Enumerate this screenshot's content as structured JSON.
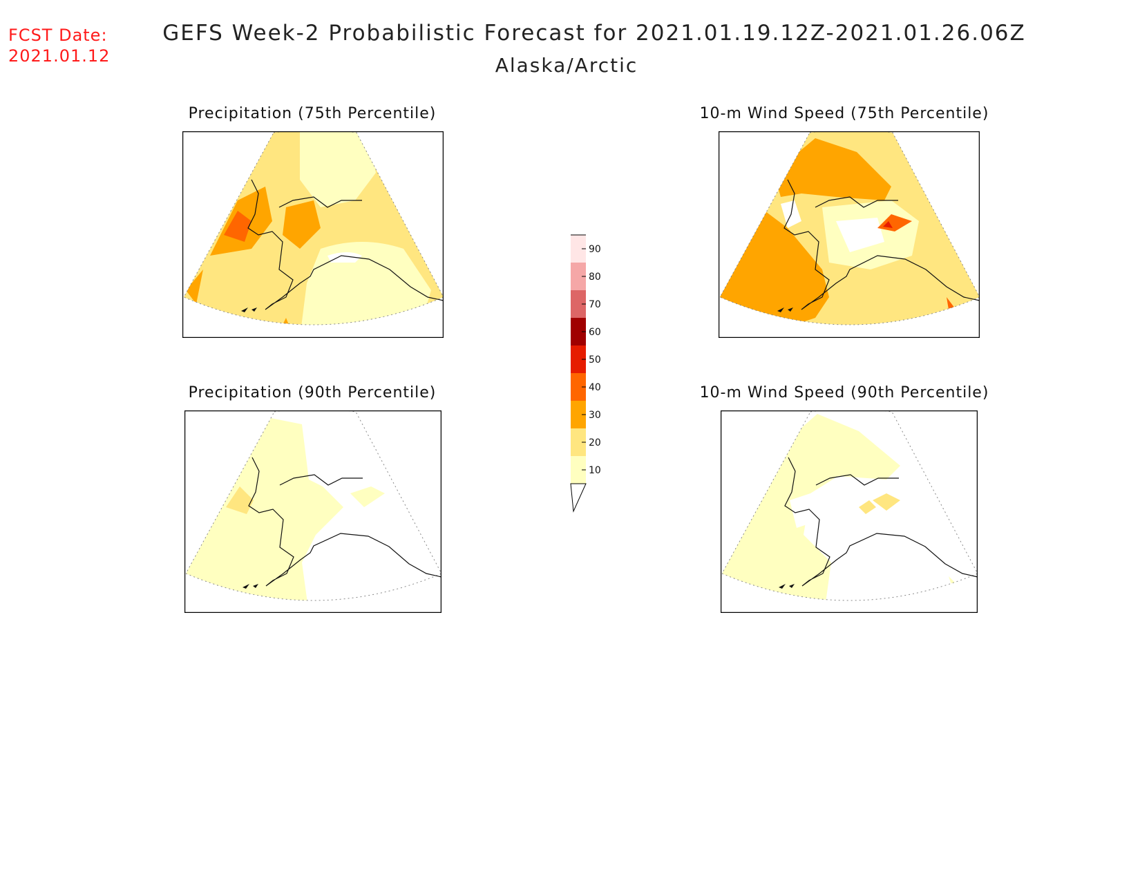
{
  "header": {
    "fcst_label": "FCST Date:",
    "fcst_date": "2021.01.12",
    "title": "GEFS Week-2 Probabilistic Forecast for 2021.01.19.12Z-2021.01.26.06Z",
    "subtitle": "Alaska/Arctic"
  },
  "panels": [
    {
      "id": "precip-75",
      "title": "Precipitation (75th Percentile)"
    },
    {
      "id": "wind-75",
      "title": "10-m Wind Speed (75th Percentile)"
    },
    {
      "id": "precip-90",
      "title": "Precipitation (90th Percentile)"
    },
    {
      "id": "wind-90",
      "title": "10-m Wind Speed (90th Percentile)"
    }
  ],
  "legend": {
    "ticks": [
      "10",
      "20",
      "30",
      "40",
      "50",
      "60",
      "70",
      "80",
      "90"
    ],
    "colors": [
      "#ffffc0",
      "#ffe680",
      "#ffa500",
      "#ff6600",
      "#e61c00",
      "#a00000",
      "#dd6666",
      "#f5a7a7",
      "#ffe6e6"
    ]
  },
  "colors": {
    "white": "#ffffff",
    "light_yellow": "#ffffc0",
    "yellow": "#ffe680",
    "orange": "#ffa500",
    "dark_orange": "#ff6600",
    "red": "#e61c00",
    "fcst_red": "#ff1a1a"
  }
}
